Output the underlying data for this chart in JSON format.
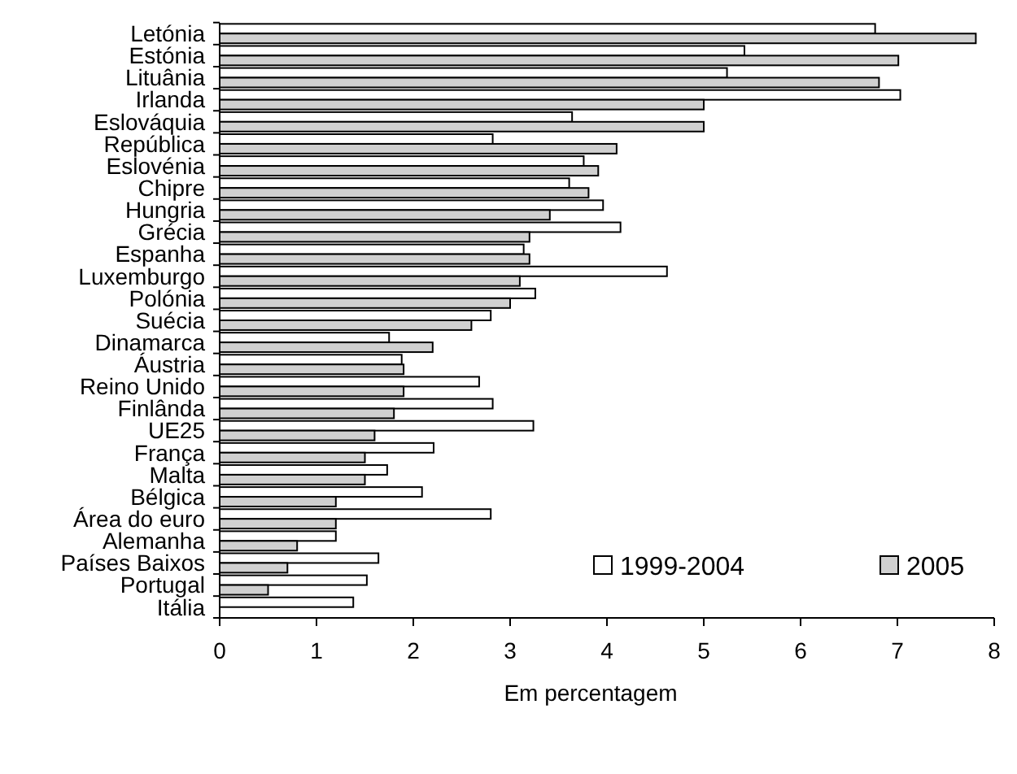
{
  "chart_data": {
    "type": "bar",
    "orientation": "horizontal",
    "xlabel": "Em percentagem",
    "categories": [
      "Letónia",
      "Estónia",
      "Lituânia",
      "Irlanda",
      "Eslováquia",
      "República",
      "Eslovénia",
      "Chipre",
      "Hungria",
      "Grécia",
      "Espanha",
      "Luxemburgo",
      "Polónia",
      "Suécia",
      "Dinamarca",
      "Áustria",
      "Reino Unido",
      "Finlânda",
      "UE25",
      "França",
      "Malta",
      "Bélgica",
      "Área do euro",
      "Alemanha",
      "Países Baixos",
      "Portugal",
      "Itália"
    ],
    "series": [
      {
        "name": "1999-2004",
        "color": "#ffffff",
        "values": [
          6.77,
          5.42,
          5.24,
          7.03,
          3.64,
          2.82,
          3.76,
          3.61,
          3.96,
          4.14,
          3.14,
          4.62,
          3.26,
          2.8,
          1.75,
          1.88,
          2.68,
          2.82,
          3.24,
          2.21,
          1.73,
          2.09,
          2.8,
          1.2,
          1.64,
          1.52,
          1.38
        ]
      },
      {
        "name": "2005",
        "color": "#d0d0d0",
        "values": [
          7.81,
          7.01,
          6.81,
          5.0,
          5.0,
          4.1,
          3.91,
          3.81,
          3.41,
          3.2,
          3.2,
          3.1,
          3.0,
          2.6,
          2.2,
          1.9,
          1.9,
          1.8,
          1.6,
          1.5,
          1.5,
          1.2,
          1.2,
          0.8,
          0.7,
          0.5,
          0
        ]
      }
    ],
    "xlim": [
      0,
      8
    ],
    "xticks": [
      0,
      1,
      2,
      3,
      4,
      5,
      6,
      7,
      8
    ],
    "legend": "bottom right"
  }
}
